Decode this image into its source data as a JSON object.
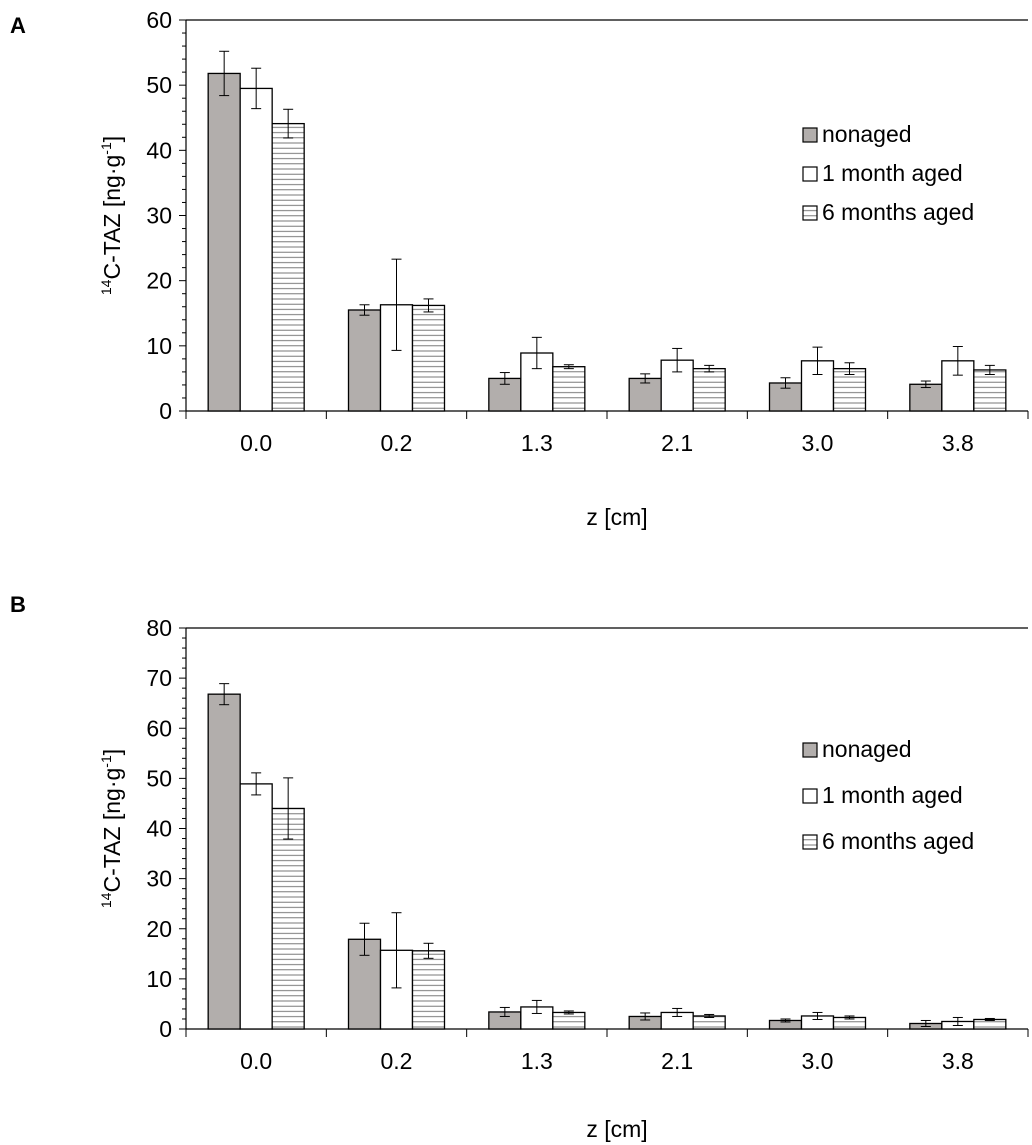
{
  "colors": {
    "nonaged": "#b2aeac",
    "aged1": "#ffffff",
    "aged6": "#ffffff",
    "stroke": "#000000"
  },
  "chart_data": [
    {
      "type": "bar",
      "panel_label": "A",
      "categories": [
        "0.0",
        "0.2",
        "1.3",
        "2.1",
        "3.0",
        "3.8"
      ],
      "xlabel": "z [cm]",
      "ylabel_super": "14",
      "ylabel_main": "C-TAZ [ng·g",
      "ylabel_exp": "-1",
      "ylabel_end": "]",
      "ylim": [
        0,
        60
      ],
      "yticks": [
        "0",
        "10",
        "20",
        "30",
        "40",
        "50",
        "60"
      ],
      "minor_ticks_per_major": 5,
      "grid": false,
      "legend": "right",
      "series": [
        {
          "name": "nonaged",
          "pattern": "solid-gray",
          "values": [
            51.8,
            15.5,
            5.0,
            5.0,
            4.3,
            4.1
          ],
          "errors": [
            3.4,
            0.8,
            0.9,
            0.7,
            0.8,
            0.5
          ]
        },
        {
          "name": "1 month aged",
          "pattern": "white",
          "values": [
            49.5,
            16.3,
            8.9,
            7.8,
            7.7,
            7.7
          ],
          "errors": [
            3.1,
            7.0,
            2.4,
            1.8,
            2.1,
            2.2
          ]
        },
        {
          "name": "6 months aged",
          "pattern": "horizontal-lines",
          "values": [
            44.1,
            16.2,
            6.8,
            6.5,
            6.5,
            6.3
          ],
          "errors": [
            2.2,
            1.0,
            0.3,
            0.5,
            0.9,
            0.7
          ]
        }
      ]
    },
    {
      "type": "bar",
      "panel_label": "B",
      "categories": [
        "0.0",
        "0.2",
        "1.3",
        "2.1",
        "3.0",
        "3.8"
      ],
      "xlabel": "z [cm]",
      "ylabel_super": "14",
      "ylabel_main": "C-TAZ [ng·g",
      "ylabel_exp": "-1",
      "ylabel_end": "]",
      "ylim": [
        0,
        80
      ],
      "yticks": [
        "0",
        "10",
        "20",
        "30",
        "40",
        "50",
        "60",
        "70",
        "80"
      ],
      "minor_ticks_per_major": 5,
      "grid": false,
      "legend": "right",
      "series": [
        {
          "name": "nonaged",
          "pattern": "solid-gray",
          "values": [
            66.8,
            17.9,
            3.4,
            2.5,
            1.7,
            1.1
          ],
          "errors": [
            2.1,
            3.2,
            0.9,
            0.7,
            0.3,
            0.6
          ]
        },
        {
          "name": "1 month aged",
          "pattern": "white",
          "values": [
            48.9,
            15.7,
            4.4,
            3.3,
            2.6,
            1.5
          ],
          "errors": [
            2.2,
            7.5,
            1.3,
            0.8,
            0.7,
            0.8
          ]
        },
        {
          "name": "6 months aged",
          "pattern": "horizontal-lines",
          "values": [
            44.0,
            15.6,
            3.3,
            2.6,
            2.3,
            1.9
          ],
          "errors": [
            6.1,
            1.5,
            0.3,
            0.3,
            0.3,
            0.2
          ]
        }
      ]
    }
  ]
}
